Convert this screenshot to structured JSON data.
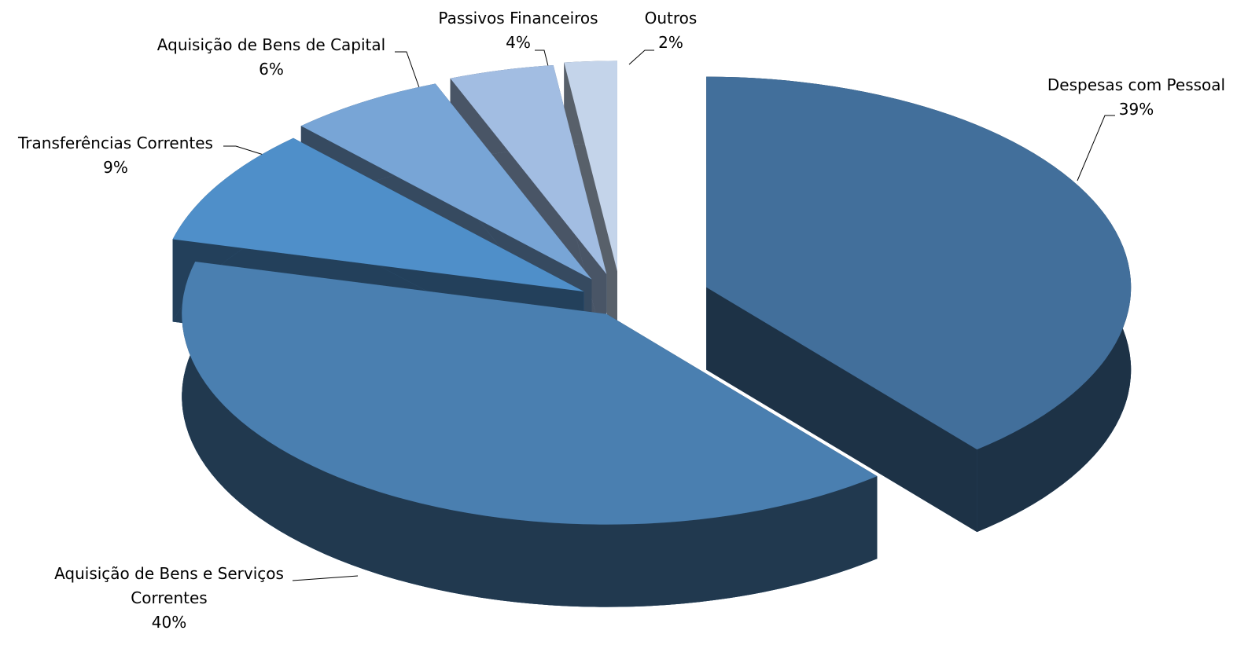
{
  "chart_data": {
    "type": "pie",
    "three_d": true,
    "categories": [
      "Despesas com Pessoal",
      "Aquisição de Bens e Serviços Correntes",
      "Transferências Correntes",
      "Aquisição de Bens de Capital",
      "Passivos Financeiros",
      "Outros"
    ],
    "values": [
      39,
      40,
      9,
      6,
      4,
      2
    ],
    "value_labels": [
      "39%",
      "40%",
      "9%",
      "6%",
      "4%",
      "2%"
    ],
    "colors": [
      "#426f9b",
      "#4a7fb0",
      "#4f8fc9",
      "#78a5d6",
      "#a2bde2",
      "#c4d4ea"
    ]
  }
}
